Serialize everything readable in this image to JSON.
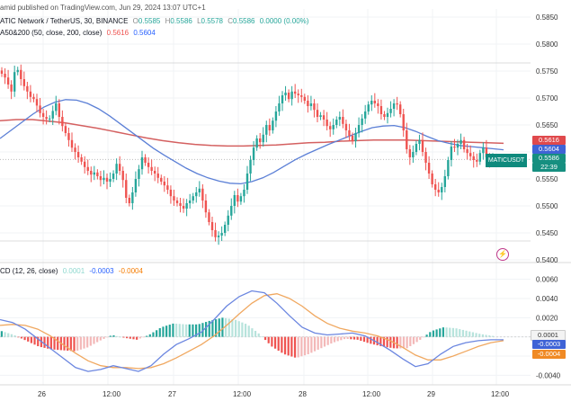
{
  "header": {
    "published": "amid published on TradingView.com, Jun 29, 2024 13:07 UTC+1",
    "symbol_line": "ATIC Network / TetherUS, 30, BINANCE",
    "o_label": "O",
    "o_value": "0.5585",
    "h_label": "H",
    "h_value": "0.5586",
    "l_label": "L",
    "l_value": "0.5578",
    "c_label": "C",
    "c_value": "0.5586",
    "change": "0.0000 (0.00%)",
    "ma_label": "A50&200 (50, close, 200, close)",
    "ma200_value": "0.5616",
    "ma50_value": "0.5604",
    "macd_label": "CD (12, 26, close)",
    "macd_hist_value": "0.0001",
    "macd_line_value": "-0.0003",
    "macd_signal_value": "-0.0004"
  },
  "tags": {
    "ma200": "0.5616",
    "ma50": "0.5604",
    "price": "0.5586",
    "countdown": "22:39",
    "symbol_tag": "MATICUSDT",
    "macd_hist": "0.0001",
    "macd_line": "-0.0003",
    "macd_signal": "-0.0004",
    "alert_icon": "alert-clock-icon"
  },
  "colors": {
    "up": "#26a69a",
    "down": "#ef5350",
    "ma50": "#5b7fd6",
    "ma200": "#d46060",
    "macd_line": "#6b86e0",
    "signal_line": "#f0a860",
    "hist_light": "#b7e3dc",
    "hist_pink": "#f3b8b8",
    "price_line": "#bdbdbd"
  },
  "chart_data": [
    {
      "type": "candlestick",
      "title": "ATIC Network / TetherUS, 30, BINANCE",
      "y_ticks": [
        "0.5850",
        "0.5800",
        "0.5750",
        "0.5700",
        "0.5650",
        "0.5600",
        "0.5550",
        "0.5500",
        "0.5450",
        "0.5400"
      ],
      "ylim": [
        0.5395,
        0.5865
      ],
      "x_ticks": [
        "26",
        "12:00",
        "27",
        "12:00",
        "28",
        "12:00",
        "29",
        "12:00"
      ],
      "series": [
        {
          "name": "Price",
          "values": [
            0.5745,
            0.5738,
            0.5725,
            0.5712,
            0.5748,
            0.5752,
            0.5735,
            0.5722,
            0.5712,
            0.5702,
            0.5698,
            0.5686,
            0.5672,
            0.5665,
            0.5661,
            0.5662,
            0.5676,
            0.569,
            0.5665,
            0.5648,
            0.5635,
            0.5622,
            0.5608,
            0.56,
            0.559,
            0.5582,
            0.5572,
            0.5565,
            0.5558,
            0.5562,
            0.5555,
            0.5548,
            0.5552,
            0.5545,
            0.555,
            0.556,
            0.5578,
            0.5565,
            0.5548,
            0.5515,
            0.5505,
            0.5525,
            0.555,
            0.5568,
            0.559,
            0.558,
            0.5572,
            0.5565,
            0.556,
            0.5552,
            0.5545,
            0.5538,
            0.553,
            0.5518,
            0.551,
            0.5505,
            0.55,
            0.5495,
            0.5505,
            0.551,
            0.5518,
            0.5525,
            0.5532,
            0.551,
            0.5488,
            0.547,
            0.5455,
            0.5442,
            0.5445,
            0.545,
            0.5465,
            0.5482,
            0.55,
            0.552,
            0.5508,
            0.5518,
            0.553,
            0.556,
            0.5585,
            0.5608,
            0.5625,
            0.5618,
            0.5632,
            0.565,
            0.564,
            0.5658,
            0.5675,
            0.569,
            0.5705,
            0.571,
            0.5698,
            0.5712,
            0.5708,
            0.5705,
            0.5702,
            0.5695,
            0.5685,
            0.569,
            0.5678,
            0.5665,
            0.5668,
            0.566,
            0.5648,
            0.5642,
            0.565,
            0.566,
            0.5665,
            0.5652,
            0.564,
            0.563,
            0.562,
            0.5635,
            0.565,
            0.5662,
            0.5675,
            0.5688,
            0.5695,
            0.569,
            0.5685,
            0.567,
            0.5665,
            0.5672,
            0.568,
            0.569,
            0.5688,
            0.567,
            0.564,
            0.5605,
            0.559,
            0.56,
            0.5615,
            0.5622,
            0.56,
            0.558,
            0.556,
            0.554,
            0.553,
            0.5525,
            0.5535,
            0.5555,
            0.5585,
            0.561,
            0.5608,
            0.5615,
            0.5622,
            0.5605,
            0.5598,
            0.5592,
            0.5585,
            0.5582,
            0.5598,
            0.5608,
            0.559,
            0.5585,
            0.5586
          ]
        },
        {
          "name": "MA50",
          "values": [
            0.5625,
            0.564,
            0.5655,
            0.567,
            0.5683,
            0.5692,
            0.5697,
            0.5696,
            0.569,
            0.568,
            0.5667,
            0.5652,
            0.5637,
            0.5622,
            0.5607,
            0.5594,
            0.5582,
            0.557,
            0.556,
            0.5552,
            0.5546,
            0.5542,
            0.5541,
            0.5545,
            0.5552,
            0.5562,
            0.5574,
            0.5586,
            0.5596,
            0.5605,
            0.5614,
            0.5622,
            0.563,
            0.5638,
            0.5645,
            0.5648,
            0.5649,
            0.5645,
            0.5638,
            0.5629,
            0.5621,
            0.5616,
            0.5612,
            0.561,
            0.5608,
            0.5606,
            0.5604
          ]
        },
        {
          "name": "MA200",
          "values": [
            0.5658,
            0.566,
            0.566,
            0.5657,
            0.5654,
            0.5649,
            0.5644,
            0.5638,
            0.5632,
            0.5626,
            0.5621,
            0.5617,
            0.5614,
            0.5612,
            0.5611,
            0.5611,
            0.5612,
            0.5613,
            0.5615,
            0.5617,
            0.5618,
            0.562,
            0.5621,
            0.5622,
            0.5622,
            0.5622,
            0.5621,
            0.562,
            0.5619,
            0.5618,
            0.5617,
            0.5616
          ]
        }
      ]
    },
    {
      "type": "line",
      "title": "CD (12, 26, close)",
      "y_ticks": [
        "0.0060",
        "0.0040",
        "0.0020",
        "0.0000",
        "-0.0020",
        "-0.0040"
      ],
      "ylim": [
        -0.005,
        0.007
      ],
      "series": [
        {
          "name": "MACD",
          "values": [
            0.0018,
            0.0015,
            0.0008,
            -0.0002,
            -0.0012,
            -0.0022,
            -0.0032,
            -0.0036,
            -0.0034,
            -0.003,
            -0.0033,
            -0.0036,
            -0.003,
            -0.0018,
            -0.0008,
            -0.0002,
            0.0005,
            0.0018,
            0.0032,
            0.0042,
            0.0048,
            0.0046,
            0.0035,
            0.0022,
            0.001,
            0.0004,
            0.0002,
            0.0003,
            0.0004,
            0.0001,
            -0.0006,
            -0.0014,
            -0.0023,
            -0.0031,
            -0.0028,
            -0.0018,
            -0.001,
            -0.0006,
            -0.0004,
            -0.0003,
            -0.0003
          ]
        },
        {
          "name": "Signal",
          "values": [
            0.0012,
            0.0013,
            0.0012,
            0.0008,
            0.0001,
            -0.0008,
            -0.0017,
            -0.0025,
            -0.003,
            -0.0032,
            -0.0032,
            -0.0033,
            -0.0032,
            -0.0028,
            -0.0022,
            -0.0015,
            -0.0008,
            0.0001,
            0.0012,
            0.0024,
            0.0035,
            0.0043,
            0.0045,
            0.004,
            0.0032,
            0.0022,
            0.0014,
            0.0009,
            0.0006,
            0.0004,
            0.0001,
            -0.0004,
            -0.0011,
            -0.0019,
            -0.0024,
            -0.0024,
            -0.002,
            -0.0015,
            -0.001,
            -0.0006,
            -0.0004
          ]
        }
      ],
      "histogram": [
        0.0006,
        0.0002,
        -0.0004,
        -0.001,
        -0.0013,
        -0.0014,
        -0.0015,
        -0.0011,
        -0.0004,
        0.0002,
        -0.0001,
        -0.0003,
        0.0002,
        0.001,
        0.0014,
        0.0013,
        0.0013,
        0.0017,
        0.002,
        0.0018,
        0.0013,
        0.0003,
        -0.001,
        -0.0018,
        -0.0022,
        -0.0018,
        -0.0012,
        -0.0006,
        -0.0002,
        -0.0003,
        -0.0007,
        -0.001,
        -0.0012,
        -0.0012,
        -0.0004,
        0.0006,
        0.001,
        0.0009,
        0.0006,
        0.0003,
        0.0001
      ]
    }
  ]
}
